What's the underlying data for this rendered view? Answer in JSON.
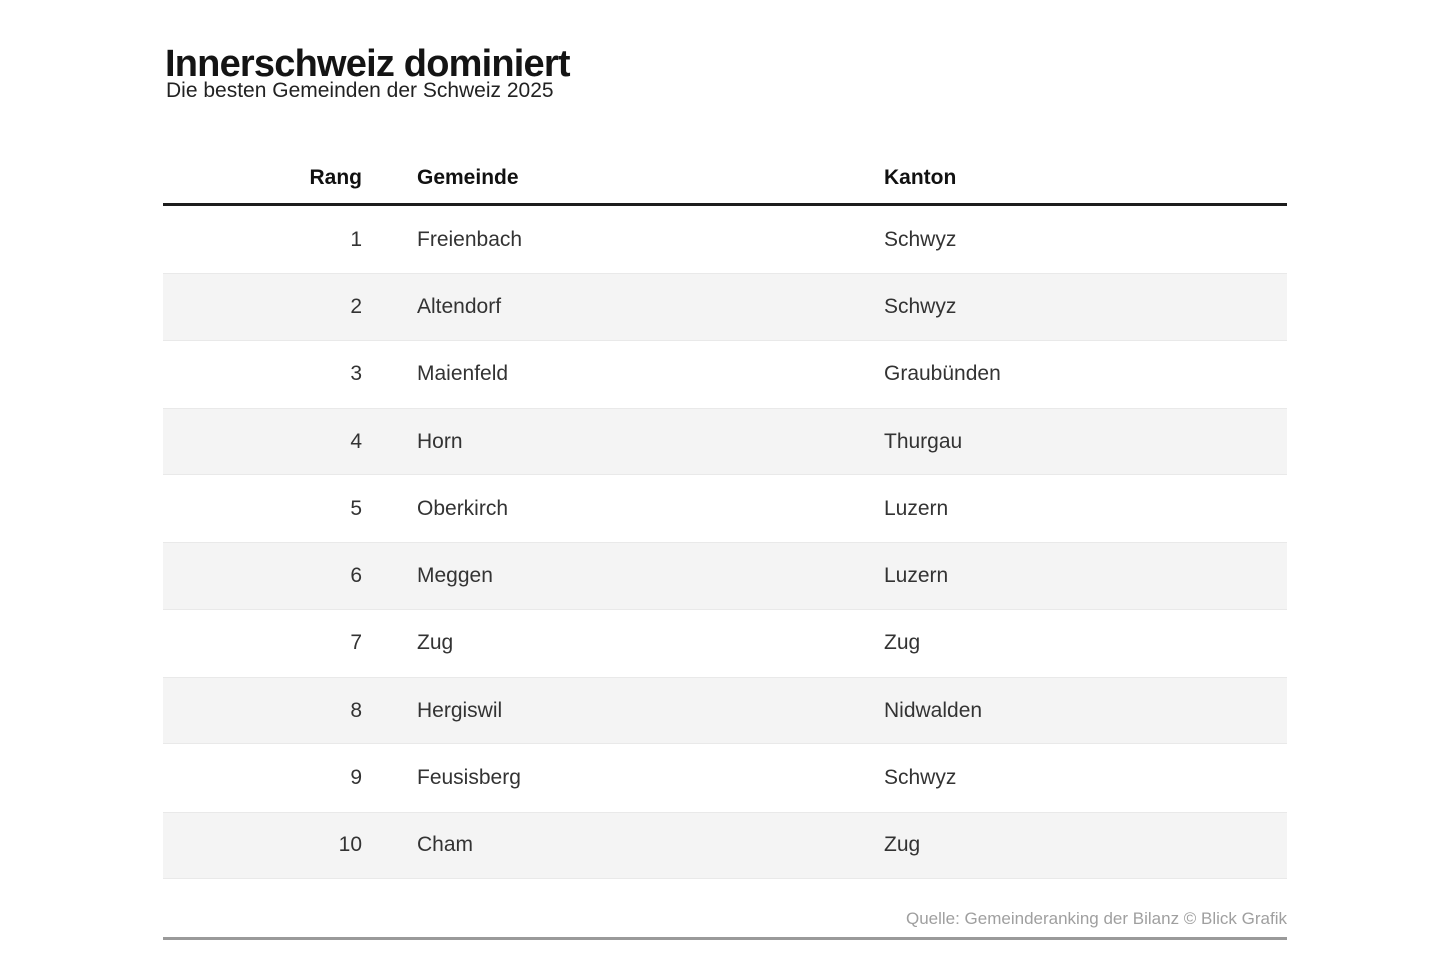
{
  "chart_data": {
    "type": "table",
    "title": "Innerschweiz dominiert",
    "subtitle": "Die besten Gemeinden der Schweiz 2025",
    "columns": [
      "Rang",
      "Gemeinde",
      "Kanton"
    ],
    "rows": [
      [
        "1",
        "Freienbach",
        "Schwyz"
      ],
      [
        "2",
        "Altendorf",
        "Schwyz"
      ],
      [
        "3",
        "Maienfeld",
        "Graubünden"
      ],
      [
        "4",
        "Horn",
        "Thurgau"
      ],
      [
        "5",
        "Oberkirch",
        "Luzern"
      ],
      [
        "6",
        "Meggen",
        "Luzern"
      ],
      [
        "7",
        "Zug",
        "Zug"
      ],
      [
        "8",
        "Hergiswil",
        "Nidwalden"
      ],
      [
        "9",
        "Feusisberg",
        "Schwyz"
      ],
      [
        "10",
        "Cham",
        "Zug"
      ]
    ],
    "source": "Quelle: Gemeinderanking der Bilanz © Blick Grafik",
    "layout": {
      "stripe_rows": "even",
      "grid": "off",
      "rank_alignment": "right",
      "header_rule_color": "#1d1d1d",
      "footer_rule_color": "#9a9a9a",
      "stripe_color": "#f4f4f4",
      "title_color": "#141414",
      "body_text_color": "#333333",
      "source_text_color": "#9f9f9f"
    }
  }
}
